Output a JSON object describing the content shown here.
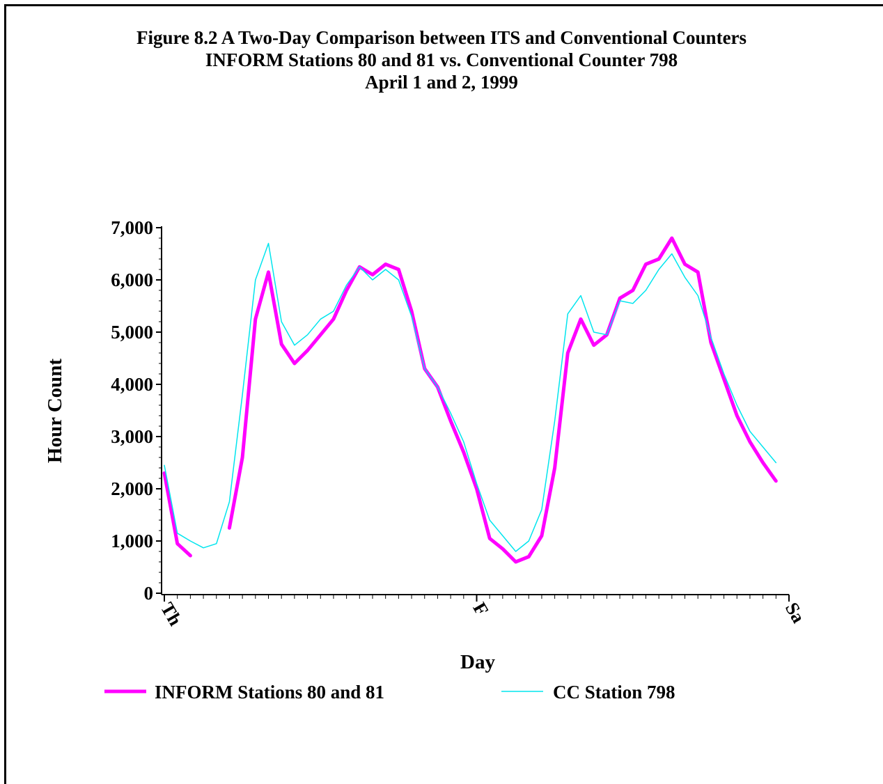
{
  "chart_data": {
    "type": "line",
    "title": "Figure 8.2 A Two-Day Comparison between ITS and Conventional Counters",
    "subtitle_lines": [
      "INFORM Stations 80 and 81 vs. Conventional Counter 798",
      "April 1 and 2, 1999"
    ],
    "xlabel": "Day",
    "ylabel": "Hour Count",
    "x_tick_labels": [
      "Th",
      "F",
      "Sa"
    ],
    "x_unit": "hour",
    "xlim": [
      0,
      48
    ],
    "ylim": [
      0,
      7000
    ],
    "y_ticks": [
      0,
      1000,
      2000,
      3000,
      4000,
      5000,
      6000,
      7000
    ],
    "y_tick_labels": [
      "0",
      "1,000",
      "2,000",
      "3,000",
      "4,000",
      "5,000",
      "6,000",
      "7,000"
    ],
    "legend_position": "bottom",
    "series": [
      {
        "name": "INFORM Stations 80 and 81",
        "color": "#ff00ff",
        "width": "thick",
        "x": [
          0,
          1,
          2,
          5,
          6,
          7,
          8,
          9,
          10,
          11,
          12,
          13,
          14,
          15,
          16,
          17,
          18,
          19,
          20,
          21,
          22,
          23,
          24,
          25,
          26,
          27,
          28,
          29,
          30,
          31,
          32,
          33,
          34,
          35,
          36,
          37,
          38,
          39,
          40,
          41,
          42,
          43,
          44,
          45,
          46,
          47
        ],
        "values": [
          2300,
          950,
          720,
          1250,
          2600,
          5250,
          6150,
          4770,
          4400,
          4650,
          4950,
          5250,
          5800,
          6250,
          6100,
          6300,
          6200,
          5400,
          4300,
          3950,
          3300,
          2700,
          2000,
          1050,
          850,
          600,
          700,
          1100,
          2400,
          4600,
          5250,
          4750,
          4950,
          5650,
          5800,
          6300,
          6400,
          6800,
          6300,
          6150,
          4800,
          4100,
          3400,
          2900,
          2500,
          2150
        ]
      },
      {
        "name": "CC Station 798",
        "color": "#00e5ee",
        "width": "thin",
        "x": [
          0,
          1,
          2,
          3,
          4,
          5,
          6,
          7,
          8,
          9,
          10,
          11,
          12,
          13,
          14,
          15,
          16,
          17,
          18,
          19,
          20,
          21,
          22,
          23,
          24,
          25,
          26,
          27,
          28,
          29,
          30,
          31,
          32,
          33,
          34,
          35,
          36,
          37,
          38,
          39,
          40,
          41,
          42,
          43,
          44,
          45,
          46,
          47
        ],
        "values": [
          2450,
          1150,
          1000,
          870,
          950,
          1750,
          3800,
          6000,
          6700,
          5200,
          4750,
          4950,
          5250,
          5400,
          5900,
          6250,
          6000,
          6200,
          6000,
          5300,
          4300,
          3950,
          3450,
          2900,
          2100,
          1400,
          1100,
          800,
          1000,
          1600,
          3300,
          5350,
          5700,
          5000,
          4950,
          5600,
          5550,
          5800,
          6200,
          6500,
          6050,
          5700,
          4900,
          4200,
          3600,
          3100,
          2800,
          2500
        ]
      }
    ]
  }
}
